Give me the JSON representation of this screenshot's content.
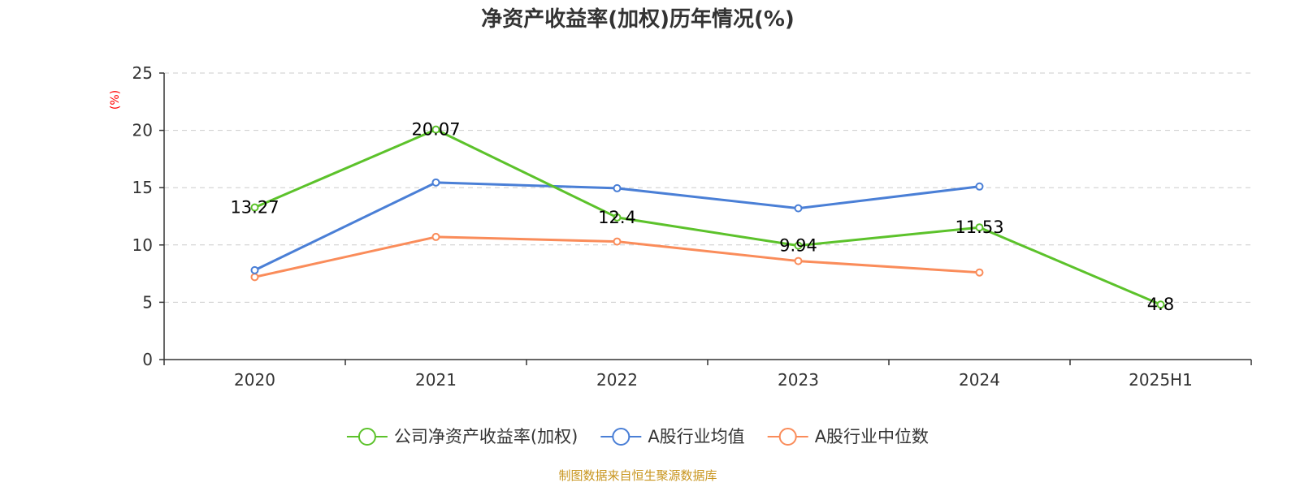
{
  "chart_data": {
    "type": "line",
    "title": "净资产收益率(加权)历年情况(%)",
    "ylabel_unit": "(%)",
    "categories": [
      "2020",
      "2021",
      "2022",
      "2023",
      "2024",
      "2025H1"
    ],
    "ylim": [
      0,
      25
    ],
    "yticks": [
      0,
      5,
      10,
      15,
      20,
      25
    ],
    "grid": true,
    "legend_position": "bottom-center",
    "series": [
      {
        "name": "公司净资产收益率(加权)",
        "color": "#5cc22b",
        "values": [
          13.27,
          20.07,
          12.4,
          9.94,
          11.53,
          4.8
        ],
        "labels": [
          "13.27",
          "20.07",
          "12.4",
          "9.94",
          "11.53",
          "4.8"
        ],
        "show_labels": true
      },
      {
        "name": "A股行业均值",
        "color": "#4a7fd6",
        "values": [
          7.8,
          15.45,
          14.95,
          13.2,
          15.1,
          null
        ],
        "show_labels": false
      },
      {
        "name": "A股行业中位数",
        "color": "#fa8c5a",
        "values": [
          7.2,
          10.7,
          10.3,
          8.6,
          7.6,
          null
        ],
        "show_labels": false
      }
    ],
    "source": "制图数据来自恒生聚源数据库",
    "source_color": "#c8951e",
    "unit_color": "#ff0000"
  }
}
